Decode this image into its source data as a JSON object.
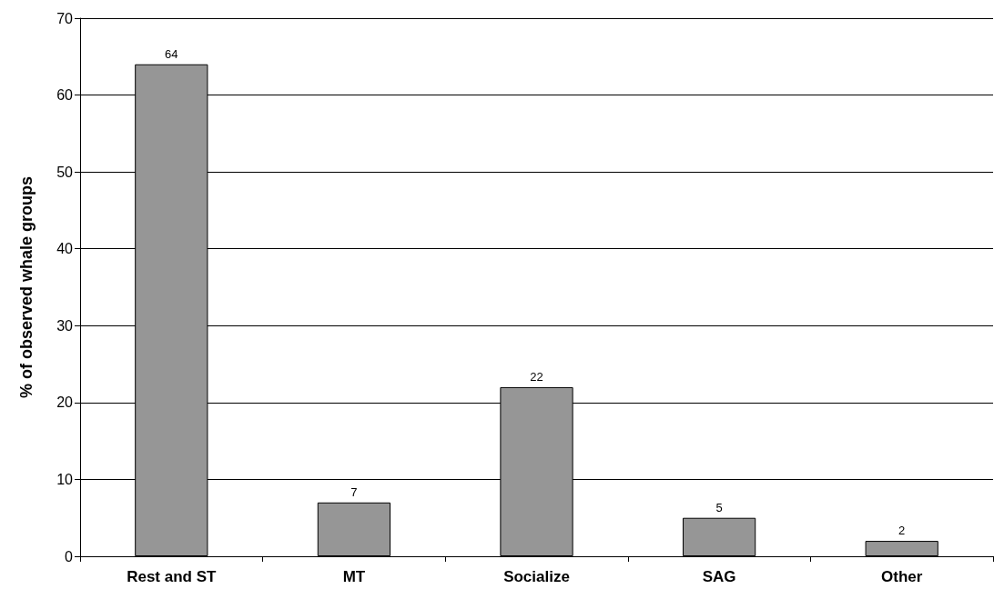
{
  "chart_data": {
    "type": "bar",
    "ylabel": "% of observed whale groups",
    "categories": [
      "Rest and ST",
      "MT",
      "Socialize",
      "SAG",
      "Other"
    ],
    "values": [
      64,
      7,
      22,
      5,
      2
    ],
    "color": "#969696",
    "ylim": [
      0,
      70
    ],
    "yticks": [
      0,
      10,
      20,
      30,
      40,
      50,
      60,
      70
    ],
    "grid": "y",
    "data_labels": true
  }
}
